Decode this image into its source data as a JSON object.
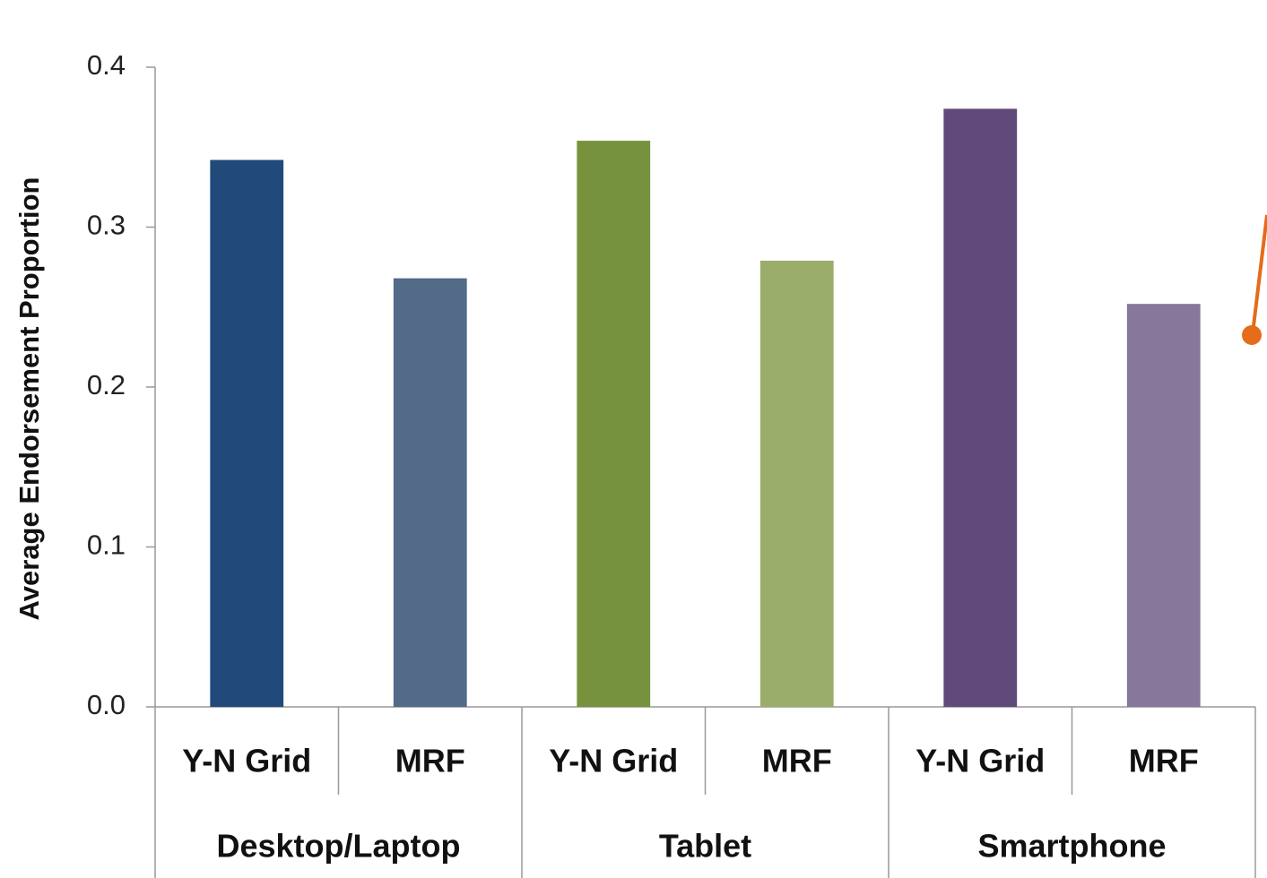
{
  "chart_data": {
    "type": "bar",
    "ylabel": "Average Endorsement Proportion",
    "categories": [
      "Y-N Grid",
      "MRF",
      "Y-N Grid",
      "MRF",
      "Y-N Grid",
      "MRF"
    ],
    "groups": [
      "Desktop/Laptop",
      "Tablet",
      "Smartphone"
    ],
    "values": [
      0.342,
      0.268,
      0.354,
      0.279,
      0.374,
      0.252
    ],
    "colors": [
      "#214a7b",
      "#536a88",
      "#77923c",
      "#9bad6b",
      "#604a7b",
      "#87779b"
    ],
    "ylim": [
      0,
      0.4
    ],
    "yticks": [
      {
        "value": 0,
        "label": "0.0"
      },
      0.1,
      0.2,
      0.3,
      0.4
    ],
    "grid": false
  }
}
